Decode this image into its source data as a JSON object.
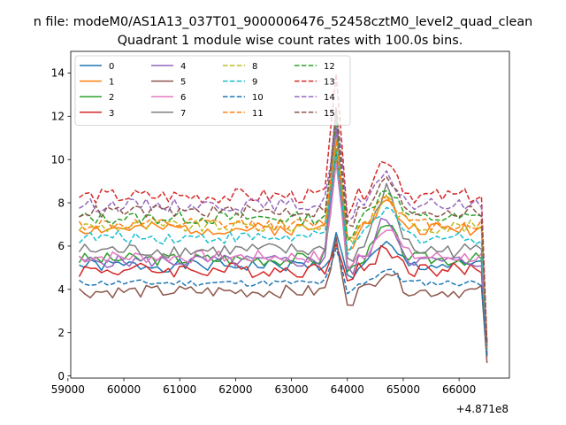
{
  "chart_data": {
    "type": "line",
    "suptitle": "n file: modeM0/AS1A13_037T01_9000006476_52458cztM0_level2_quad_clean",
    "title": "Quadrant 1 module wise count rates with 100.0s bins.",
    "xlabel": "",
    "ylabel": "",
    "x_offset_label": "+4.871e8",
    "xlim": [
      59050,
      66900
    ],
    "ylim": [
      -0.1,
      15.0
    ],
    "xticks": [
      59000,
      60000,
      61000,
      62000,
      63000,
      64000,
      65000,
      66000
    ],
    "yticks": [
      0,
      2,
      4,
      6,
      8,
      10,
      12,
      14
    ],
    "x_start": 59200,
    "x_step": 100,
    "x_end": 66500,
    "legend": {
      "location": "top-left",
      "columns": 4
    },
    "series": [
      {
        "name": "0",
        "color": "#1f77b4",
        "dashed": false,
        "base": 5.1,
        "noise": 0.3,
        "peak": 1.3,
        "bump": 0.9,
        "end": 1.0
      },
      {
        "name": "1",
        "color": "#ff7f0e",
        "dashed": false,
        "base": 6.8,
        "noise": 0.3,
        "peak": 3.5,
        "bump": 1.2,
        "end": 1.3
      },
      {
        "name": "2",
        "color": "#2ca02c",
        "dashed": false,
        "base": 5.4,
        "noise": 0.3,
        "peak": 5.0,
        "bump": 1.5,
        "end": 1.2
      },
      {
        "name": "3",
        "color": "#d62728",
        "dashed": false,
        "base": 4.9,
        "noise": 0.35,
        "peak": 1.5,
        "bump": 1.0,
        "end": 0.9
      },
      {
        "name": "4",
        "color": "#9467bd",
        "dashed": false,
        "base": 5.3,
        "noise": 0.3,
        "peak": 6.2,
        "bump": 2.0,
        "end": 1.0
      },
      {
        "name": "5",
        "color": "#8c564b",
        "dashed": false,
        "base": 3.9,
        "noise": 0.3,
        "peak": 2.3,
        "bump": 1.0,
        "end": 0.6
      },
      {
        "name": "6",
        "color": "#e377c2",
        "dashed": false,
        "base": 5.5,
        "noise": 0.3,
        "peak": 4.5,
        "bump": 1.5,
        "end": 1.1
      },
      {
        "name": "7",
        "color": "#7f7f7f",
        "dashed": false,
        "base": 5.8,
        "noise": 0.35,
        "peak": 6.5,
        "bump": 2.8,
        "end": 1.2
      },
      {
        "name": "8",
        "color": "#bcbd22",
        "dashed": true,
        "base": 6.9,
        "noise": 0.3,
        "peak": 4.3,
        "bump": 1.3,
        "end": 1.4
      },
      {
        "name": "9",
        "color": "#17becf",
        "dashed": true,
        "base": 6.4,
        "noise": 0.3,
        "peak": 4.0,
        "bump": 1.3,
        "end": 1.2
      },
      {
        "name": "10",
        "color": "#1f77b4",
        "dashed": true,
        "base": 4.3,
        "noise": 0.15,
        "peak": 1.5,
        "bump": 0.6,
        "end": 0.9
      },
      {
        "name": "11",
        "color": "#ff7f0e",
        "dashed": true,
        "base": 7.0,
        "noise": 0.3,
        "peak": 4.0,
        "bump": 1.4,
        "end": 1.3
      },
      {
        "name": "12",
        "color": "#2ca02c",
        "dashed": true,
        "base": 7.3,
        "noise": 0.3,
        "peak": 4.5,
        "bump": 1.4,
        "end": 1.4
      },
      {
        "name": "13",
        "color": "#d62728",
        "dashed": true,
        "base": 8.3,
        "noise": 0.35,
        "peak": 6.0,
        "bump": 1.8,
        "end": 1.5
      },
      {
        "name": "14",
        "color": "#9467bd",
        "dashed": true,
        "base": 7.9,
        "noise": 0.3,
        "peak": 4.6,
        "bump": 1.3,
        "end": 1.4
      },
      {
        "name": "15",
        "color": "#8c564b",
        "dashed": true,
        "base": 7.6,
        "noise": 0.3,
        "peak": 4.6,
        "bump": 1.4,
        "end": 1.4
      }
    ]
  }
}
